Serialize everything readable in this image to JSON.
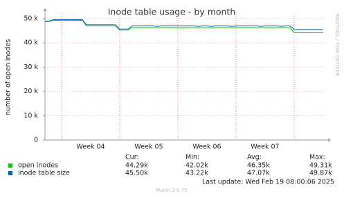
{
  "chart_data": {
    "type": "line",
    "title": "Inode table usage - by month",
    "y_label": "number of open inodes",
    "side_text": "RRDTOOL / TOBI OETIKER",
    "categories": [
      null,
      null,
      null,
      null,
      null,
      null,
      null,
      null,
      null,
      null,
      null,
      "Week 04",
      null,
      null,
      null,
      null,
      null,
      null,
      null,
      null,
      null,
      null,
      null,
      null,
      null,
      "Week 05",
      null,
      null,
      null,
      null,
      null,
      null,
      null,
      null,
      null,
      null,
      null,
      null,
      null,
      "Week 06",
      null,
      null,
      null,
      null,
      null,
      null,
      null,
      null,
      null,
      null,
      null,
      null,
      null,
      "Week 07",
      null,
      null,
      null,
      null,
      null,
      null,
      null,
      null,
      null,
      null,
      null,
      null,
      null,
      null
    ],
    "ylim": [
      0,
      52000
    ],
    "yticks": [
      0,
      {
        "value": 10000,
        "label": "10 k"
      },
      {
        "value": 20000,
        "label": "20 k"
      },
      {
        "value": 30000,
        "label": "30 k"
      },
      {
        "value": 40000,
        "label": "40 k"
      },
      {
        "value": 50000,
        "label": "50 k"
      }
    ],
    "grid": true,
    "stat_headers": [
      "Cur:",
      "Min:",
      "Avg:",
      "Max:"
    ],
    "series": [
      {
        "name": "open inodes",
        "color": "#00cc00",
        "stats": [
          "44.29k",
          "42.02k",
          "46.35k",
          "49.31k"
        ],
        "values": [
          48800,
          48800,
          49300,
          49300,
          49300,
          49300,
          49300,
          49300,
          49300,
          49300,
          47000,
          47000,
          47000,
          47000,
          47000,
          47000,
          47000,
          47000,
          45300,
          45300,
          45300,
          46300,
          46300,
          46300,
          46300,
          46300,
          46300,
          46300,
          46300,
          46300,
          46300,
          46300,
          46300,
          46300,
          46300,
          46300,
          46300,
          46300,
          46300,
          46300,
          46300,
          46300,
          46300,
          46300,
          46300,
          46300,
          46300,
          46300,
          46300,
          46300,
          46300,
          46300,
          46300,
          46300,
          46300,
          46300,
          46300,
          46300,
          46300,
          46300,
          44200,
          44200,
          44200,
          44200,
          44200,
          44200,
          44200,
          44200
        ]
      },
      {
        "name": "inode table size",
        "color": "#0066b3",
        "stats": [
          "45.50k",
          "43.22k",
          "47.07k",
          "49.87k"
        ],
        "values": [
          49000,
          49000,
          49600,
          49600,
          49600,
          49600,
          49600,
          49600,
          49600,
          49600,
          47500,
          47500,
          47500,
          47500,
          47500,
          47500,
          47500,
          47500,
          45700,
          45700,
          45700,
          47000,
          47000,
          47000,
          47000,
          47000,
          47000,
          46800,
          47000,
          47000,
          47000,
          47000,
          47000,
          47000,
          47000,
          47000,
          47000,
          46800,
          47000,
          47000,
          46800,
          47000,
          47000,
          47000,
          47000,
          46800,
          47000,
          47000,
          47000,
          47000,
          47000,
          47000,
          46800,
          47000,
          47000,
          47000,
          47000,
          46800,
          47000,
          47000,
          45500,
          45500,
          45500,
          45500,
          45500,
          45500,
          45500,
          45500
        ]
      }
    ],
    "last_update": "Last update: Wed Feb 19 08:00:06 2025",
    "footer": "Munin 2.0.75"
  }
}
